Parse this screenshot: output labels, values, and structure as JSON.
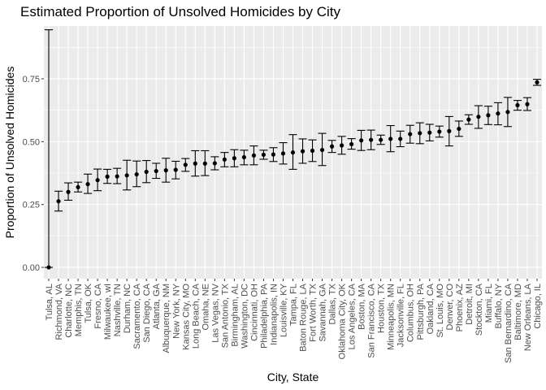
{
  "chart_data": {
    "type": "scatter",
    "title": "Estimated Proportion of Unsolved Homicides by City",
    "xlabel": "City, State",
    "ylabel": "Proportion of Unsolved Homicides",
    "ylim": [
      -0.045,
      0.96
    ],
    "yticks": [
      0.0,
      0.25,
      0.5,
      0.75
    ],
    "ytick_labels": [
      "0.00",
      "0.25",
      "0.50",
      "0.75"
    ],
    "grid": true,
    "legend": "none",
    "error_bars": true,
    "colors": {
      "panel": "#ebebeb",
      "grid": "#ffffff",
      "point": "#000000",
      "tick_text": "#4d4d4d"
    },
    "categories": [
      "Tulsa, AL",
      "Richmond, VA",
      "Charlotte, NC",
      "Memphis, TN",
      "Tulsa, OK",
      "Fresno, CA",
      "Milwaukee, wI",
      "Nashville, TN",
      "Durham, NC",
      "Sacramento, CA",
      "San Diego, CA",
      "Atlanta, GA",
      "Albuquerque, NM",
      "New York, NY",
      "Kansas City, MO",
      "Long Beach, CA",
      "Omaha, NE",
      "Las Vegas, NV",
      "San Antonio, TX",
      "Birmingham, AL",
      "Washington, DC",
      "Cincinnati, OH",
      "Philadelphia, PA",
      "Indianapolis, IN",
      "Louisville, KY",
      "Tampa, FL",
      "Baton Rouge, LA",
      "Fort Worth, TX",
      "Savannah, GA",
      "Dallas, TX",
      "Oklahoma City, OK",
      "Los Angeles, CA",
      "Boston, MA",
      "San Francisco, CA",
      "Houston, TX",
      "Minneapolis, MN",
      "Jacksonville, FL",
      "Columbus, OH",
      "Pittsburgh, PA",
      "Oakland, CA",
      "St. Louis, MO",
      "Denver, CO",
      "Phoenix, AZ",
      "Detroit, MI",
      "Stockton, CA",
      "Miami, FL",
      "Buffalo, NY",
      "San Bernardino, CA",
      "Baltimore, MD",
      "New Orleans, LA",
      "Chicago, IL"
    ],
    "estimate": [
      0.0,
      0.263,
      0.3,
      0.319,
      0.331,
      0.347,
      0.361,
      0.362,
      0.366,
      0.37,
      0.38,
      0.383,
      0.386,
      0.388,
      0.408,
      0.413,
      0.413,
      0.414,
      0.429,
      0.434,
      0.438,
      0.445,
      0.448,
      0.449,
      0.453,
      0.457,
      0.462,
      0.464,
      0.467,
      0.481,
      0.485,
      0.49,
      0.505,
      0.507,
      0.507,
      0.511,
      0.511,
      0.53,
      0.534,
      0.536,
      0.54,
      0.542,
      0.551,
      0.588,
      0.599,
      0.605,
      0.612,
      0.618,
      0.645,
      0.649,
      0.736
    ],
    "lower": [
      0.0,
      0.224,
      0.267,
      0.3,
      0.294,
      0.305,
      0.334,
      0.333,
      0.308,
      0.321,
      0.337,
      0.354,
      0.339,
      0.352,
      0.382,
      0.363,
      0.365,
      0.388,
      0.4,
      0.4,
      0.408,
      0.408,
      0.43,
      0.421,
      0.411,
      0.39,
      0.414,
      0.421,
      0.405,
      0.457,
      0.45,
      0.47,
      0.465,
      0.468,
      0.489,
      0.46,
      0.48,
      0.494,
      0.492,
      0.503,
      0.518,
      0.483,
      0.521,
      0.569,
      0.553,
      0.568,
      0.567,
      0.56,
      0.625,
      0.624,
      0.724
    ],
    "upper": [
      0.945,
      0.303,
      0.336,
      0.339,
      0.371,
      0.391,
      0.39,
      0.394,
      0.426,
      0.423,
      0.425,
      0.414,
      0.434,
      0.422,
      0.433,
      0.464,
      0.464,
      0.44,
      0.457,
      0.468,
      0.466,
      0.483,
      0.466,
      0.476,
      0.496,
      0.528,
      0.511,
      0.507,
      0.533,
      0.505,
      0.521,
      0.512,
      0.545,
      0.546,
      0.526,
      0.564,
      0.542,
      0.565,
      0.575,
      0.569,
      0.562,
      0.6,
      0.582,
      0.607,
      0.643,
      0.641,
      0.655,
      0.676,
      0.664,
      0.675,
      0.748
    ]
  }
}
